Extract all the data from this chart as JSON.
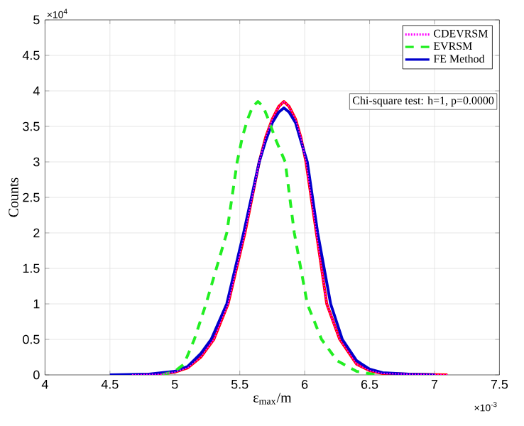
{
  "chart_data": {
    "type": "line",
    "xlabel": "ε$_{max}$/m",
    "ylabel": "Counts",
    "xlim": [
      4,
      7.5
    ],
    "xticks": [
      4,
      4.5,
      5,
      5.5,
      6,
      6.5,
      7,
      7.5
    ],
    "ylim": [
      0,
      5
    ],
    "yticks": [
      0,
      0.5,
      1,
      1.5,
      2,
      2.5,
      3,
      3.5,
      4,
      4.5,
      5
    ],
    "grid": true,
    "legend": "top right",
    "marker": "none",
    "annotations": [
      "×10$^{4}$",
      "×10$^{-3}$",
      "Chi-square test: h=1, p=0.0000"
    ],
    "series": [
      {
        "name": "CDEVRSM",
        "color": "#ff00ff",
        "line_style": "dotted",
        "x": [
          4.67,
          4.9,
          5.0,
          5.1,
          5.2,
          5.3,
          5.41,
          5.54,
          5.65,
          5.7,
          5.75,
          5.8,
          5.84,
          5.88,
          5.93,
          5.97,
          6.01,
          6.09,
          6.17,
          6.27,
          6.4,
          6.5,
          6.6,
          6.8,
          7.1
        ],
        "values": [
          0,
          0.01,
          0.04,
          0.1,
          0.25,
          0.5,
          1.0,
          2.0,
          3.0,
          3.35,
          3.6,
          3.78,
          3.85,
          3.78,
          3.6,
          3.35,
          3.0,
          2.0,
          1.0,
          0.5,
          0.15,
          0.06,
          0.02,
          0.01,
          0
        ]
      },
      {
        "name": "EVRSM",
        "color": "#22ee22",
        "line_style": "dashed",
        "x": [
          4.9,
          5.0,
          5.07,
          5.15,
          5.24,
          5.4,
          5.48,
          5.52,
          5.56,
          5.6,
          5.64,
          5.68,
          5.72,
          5.78,
          5.85,
          5.92,
          6.02,
          6.13,
          6.25,
          6.4,
          6.55
        ],
        "values": [
          0,
          0.05,
          0.15,
          0.5,
          1.0,
          2.0,
          3.0,
          3.35,
          3.6,
          3.78,
          3.85,
          3.78,
          3.6,
          3.3,
          3.0,
          2.0,
          1.0,
          0.5,
          0.2,
          0.05,
          0
        ]
      },
      {
        "name": "FE Method",
        "color": "#0000cc",
        "line_style": "solid",
        "x": [
          4.5,
          4.8,
          5.0,
          5.1,
          5.2,
          5.28,
          5.4,
          5.53,
          5.65,
          5.7,
          5.75,
          5.8,
          5.84,
          5.88,
          5.93,
          5.97,
          6.02,
          6.1,
          6.2,
          6.29,
          6.4,
          6.5,
          6.6,
          6.8,
          7.0
        ],
        "values": [
          0,
          0.01,
          0.05,
          0.12,
          0.3,
          0.5,
          1.0,
          2.0,
          3.0,
          3.3,
          3.55,
          3.7,
          3.76,
          3.7,
          3.55,
          3.3,
          3.0,
          2.0,
          1.0,
          0.5,
          0.2,
          0.08,
          0.03,
          0.01,
          0
        ]
      },
      {
        "color": "#ff0000",
        "line_style": "solid",
        "x": [
          4.67,
          4.9,
          5.0,
          5.1,
          5.2,
          5.3,
          5.41,
          5.54,
          5.65,
          5.7,
          5.75,
          5.8,
          5.84,
          5.88,
          5.93,
          5.97,
          6.01,
          6.09,
          6.17,
          6.27,
          6.4,
          6.5,
          6.6,
          6.8,
          7.1
        ],
        "values": [
          0,
          0.01,
          0.04,
          0.1,
          0.25,
          0.5,
          1.0,
          2.0,
          3.0,
          3.35,
          3.6,
          3.78,
          3.85,
          3.78,
          3.6,
          3.35,
          3.0,
          2.0,
          1.0,
          0.5,
          0.15,
          0.06,
          0.02,
          0.01,
          0
        ]
      }
    ]
  }
}
